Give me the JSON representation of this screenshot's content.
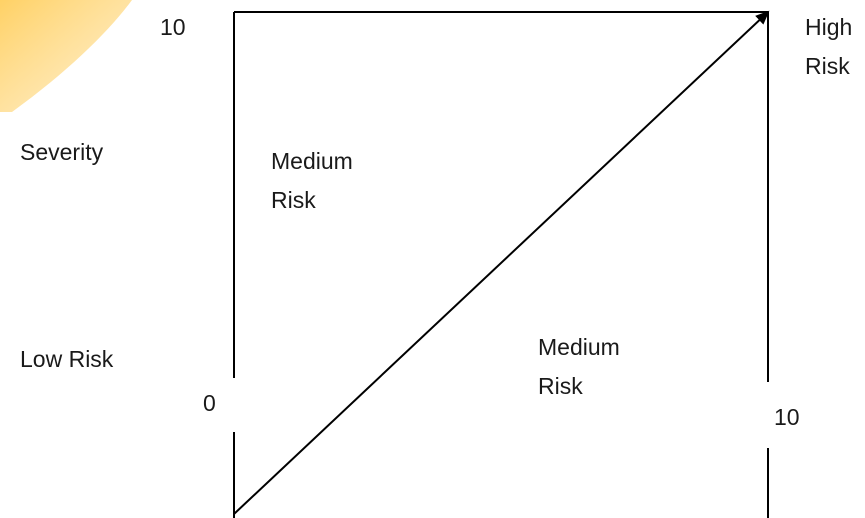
{
  "labels": {
    "y_max": "10",
    "y_min": "0",
    "x_max": "10",
    "y_axis_title": "Severity",
    "low_corner": "Low Risk",
    "high_corner": "High\nRisk",
    "upper_region": "Medium\nRisk",
    "lower_region": "Medium\nRisk"
  },
  "colors": {
    "line": "#000000",
    "text": "#1a1a1a",
    "accent_swoosh": "#FFD27A"
  },
  "icons": {
    "arrowhead": "arrowhead-icon",
    "decoration": "yellow-swoosh-decoration"
  }
}
